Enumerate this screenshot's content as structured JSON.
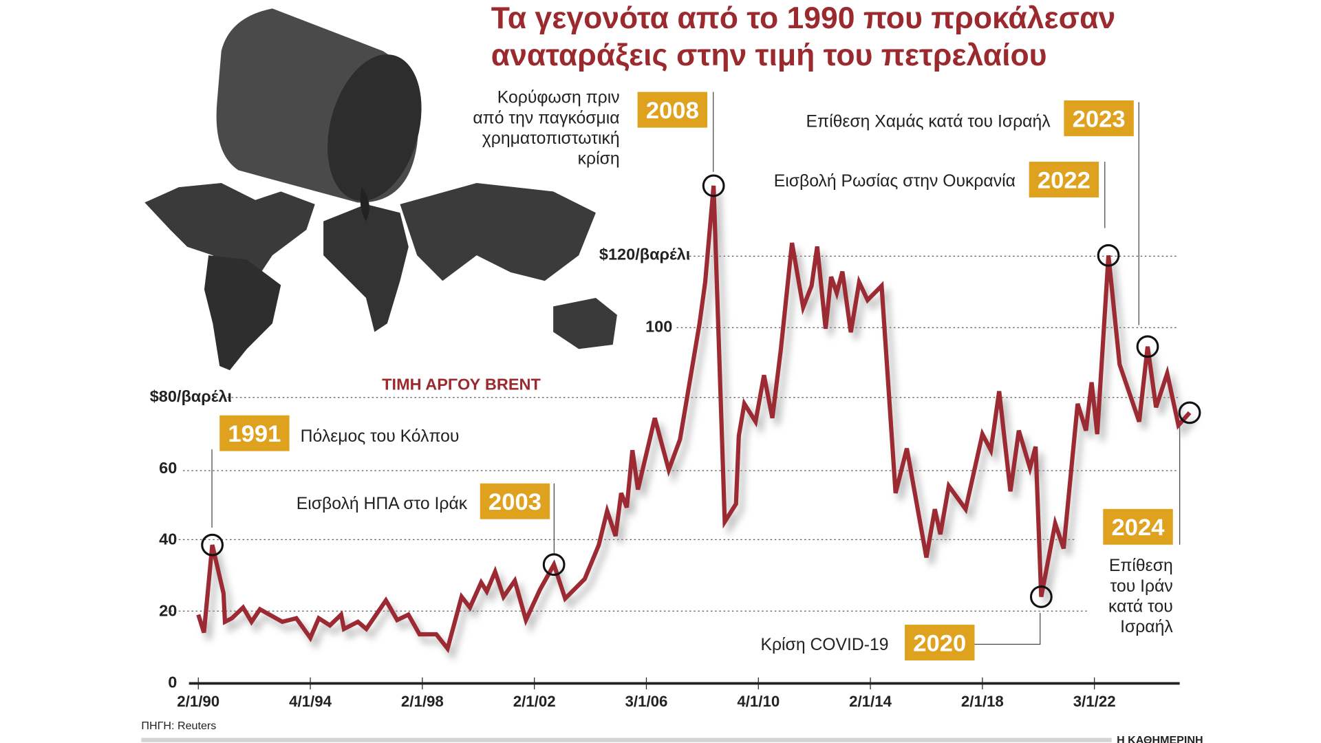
{
  "title_line1": "Τα γεγονότα από το 1990 που προκάλεσαν",
  "title_line2": "αναταράξεις στην τιμή του πετρελαίου",
  "series_label": "ΤΙΜΗ ΑΡΓΟΥ BRENT",
  "source": "ΠΗΓΗ: Reuters",
  "publisher": "Η ΚΑΘΗΜΕΡΙΝΗ",
  "colors": {
    "line": "#9b2a33",
    "title": "#9b2a2e",
    "badge": "#dea21f"
  },
  "events": [
    {
      "year_label": "1991",
      "text": [
        "Πόλεμος του Κόλπου"
      ]
    },
    {
      "year_label": "2003",
      "text": [
        "Εισβολή ΗΠΑ στο Ιράκ"
      ]
    },
    {
      "year_label": "2008",
      "text": [
        "Κορύφωση πριν",
        "από την παγκόσμια",
        "χρηματοπιστωτική",
        "κρίση"
      ]
    },
    {
      "year_label": "2020",
      "text": [
        "Κρίση COVID-19"
      ]
    },
    {
      "year_label": "2022",
      "text": [
        "Εισβολή Ρωσίας στην Ουκρανία"
      ]
    },
    {
      "year_label": "2023",
      "text": [
        "Επίθεση Χαμάς κατά του Ισραήλ"
      ]
    },
    {
      "year_label": "2024",
      "text": [
        "Επίθεση",
        "του Ιράν",
        "κατά του",
        "Ισραήλ"
      ]
    }
  ],
  "chart_data": {
    "type": "line",
    "title": "Τα γεγονότα από το 1990 που προκάλεσαν αναταράξεις στην τιμή του πετρελαίου",
    "series_name": "ΤΙΜΗ ΑΡΓΟΥ BRENT",
    "ylabel": "$/βαρέλι",
    "ylim": [
      0,
      140
    ],
    "xlim": [
      1990,
      2025.5
    ],
    "y_ticks": [
      {
        "value": 0,
        "label": "0"
      },
      {
        "value": 20,
        "label": "20"
      },
      {
        "value": 40,
        "label": "40"
      },
      {
        "value": 60,
        "label": "60"
      },
      {
        "value": 80,
        "label": "$80/βαρέλι"
      },
      {
        "value": 100,
        "label": "100"
      },
      {
        "value": 120,
        "label": "$120/βαρέλι"
      }
    ],
    "x_ticks": [
      {
        "value": 1990.0,
        "label": "2/1/90"
      },
      {
        "value": 1994.0,
        "label": "4/1/94"
      },
      {
        "value": 1998.0,
        "label": "2/1/98"
      },
      {
        "value": 2002.0,
        "label": "2/1/02"
      },
      {
        "value": 2006.0,
        "label": "3/1/06"
      },
      {
        "value": 2010.0,
        "label": "4/1/10"
      },
      {
        "value": 2014.0,
        "label": "2/1/14"
      },
      {
        "value": 2018.0,
        "label": "2/1/18"
      },
      {
        "value": 2022.0,
        "label": "3/1/22"
      }
    ],
    "x": [
      1990,
      1990.2,
      1990.5,
      1990.9,
      1990.95,
      1991.2,
      1991.6,
      1991.9,
      1992.2,
      1993,
      1993.5,
      1994,
      1994.3,
      1994.7,
      1995.1,
      1995.2,
      1995.7,
      1996,
      1996.7,
      1997.1,
      1997.5,
      1997.9,
      1998.5,
      1998.9,
      1999.4,
      1999.7,
      2000.1,
      2000.3,
      2000.6,
      2000.9,
      2001.3,
      2001.7,
      2002.2,
      2002.7,
      2003.1,
      2003.8,
      2004.3,
      2004.6,
      2004.9,
      2005.1,
      2005.3,
      2005.5,
      2005.7,
      2006.3,
      2006.8,
      2007.2,
      2007.9,
      2008.1,
      2008.4,
      2008.8,
      2009.2,
      2009.3,
      2009.5,
      2009.9,
      2010.2,
      2010.5,
      2010.8,
      2011.2,
      2011.6,
      2011.9,
      2012.1,
      2012.4,
      2012.6,
      2012.8,
      2013,
      2013.3,
      2013.6,
      2013.9,
      2014.4,
      2014.9,
      2015.3,
      2016,
      2016.3,
      2016.5,
      2016.8,
      2017.4,
      2018,
      2018.3,
      2018.6,
      2019,
      2019.3,
      2019.7,
      2019.9,
      2020.1,
      2020.6,
      2020.9,
      2021.4,
      2021.7,
      2021.9,
      2022.1,
      2022.5,
      2022.9,
      2023.6,
      2023.9,
      2024.2,
      2024.6,
      2025,
      2025.4
    ],
    "values": [
      19,
      14,
      38.5,
      25,
      17,
      18,
      21,
      17,
      20.5,
      17,
      18,
      12.5,
      18,
      16,
      19,
      15,
      17,
      15,
      23,
      17.5,
      19,
      13.5,
      13.5,
      9.5,
      24,
      21,
      28,
      25.5,
      31,
      24,
      28.5,
      17.5,
      26,
      33,
      23.5,
      29,
      38.5,
      48,
      41,
      53,
      49,
      65,
      54,
      74,
      59.5,
      68,
      100.5,
      112,
      139,
      45,
      50,
      69,
      78,
      73,
      86,
      74,
      93,
      123,
      105,
      111,
      122,
      99,
      113.5,
      109,
      115,
      98,
      112,
      107,
      111,
      53,
      65.5,
      35,
      48.5,
      41.5,
      55,
      48.5,
      69.5,
      65,
      81.5,
      53.5,
      70.5,
      60,
      66,
      24,
      44.5,
      37.5,
      78,
      70.5,
      84,
      69.5,
      119.5,
      89,
      73,
      94,
      77,
      86.5,
      72,
      75.5
    ],
    "markers": [
      {
        "event": "1991",
        "x": 1990.5,
        "y": 38.5
      },
      {
        "event": "2003",
        "x": 2002.7,
        "y": 33
      },
      {
        "event": "2008",
        "x": 2008.4,
        "y": 139
      },
      {
        "event": "2020",
        "x": 2020.1,
        "y": 24
      },
      {
        "event": "2022",
        "x": 2022.5,
        "y": 119.5
      },
      {
        "event": "2023",
        "x": 2023.9,
        "y": 94
      },
      {
        "event": "2024",
        "x": 2025.4,
        "y": 75.5
      }
    ],
    "grid": "dotted horizontal",
    "legend": "none"
  }
}
